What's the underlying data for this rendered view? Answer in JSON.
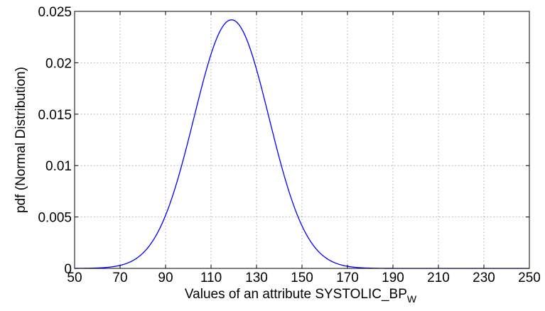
{
  "chart_data": {
    "type": "line",
    "title": "",
    "xlabel": "Values of an attribute SYSTOLIC_BP",
    "xlabel_subscript": "W",
    "ylabel": "pdf (Normal Distribution)",
    "xlim": [
      50,
      250
    ],
    "ylim": [
      0,
      0.025
    ],
    "x_ticks": [
      50,
      70,
      90,
      110,
      130,
      150,
      170,
      190,
      210,
      230,
      250
    ],
    "y_ticks": [
      0,
      0.005,
      0.01,
      0.015,
      0.02,
      0.025
    ],
    "x_tick_labels": [
      "50",
      "70",
      "90",
      "110",
      "130",
      "150",
      "170",
      "190",
      "210",
      "230",
      "250"
    ],
    "y_tick_labels": [
      "0",
      "0.005",
      "0.01",
      "0.015",
      "0.02",
      "0.025"
    ],
    "grid": true,
    "legend": "none",
    "series": [
      {
        "color": "#0000ff",
        "distribution": "normal",
        "mean": 119,
        "std": 16.5,
        "x_start": 50,
        "x_end": 250
      }
    ]
  }
}
